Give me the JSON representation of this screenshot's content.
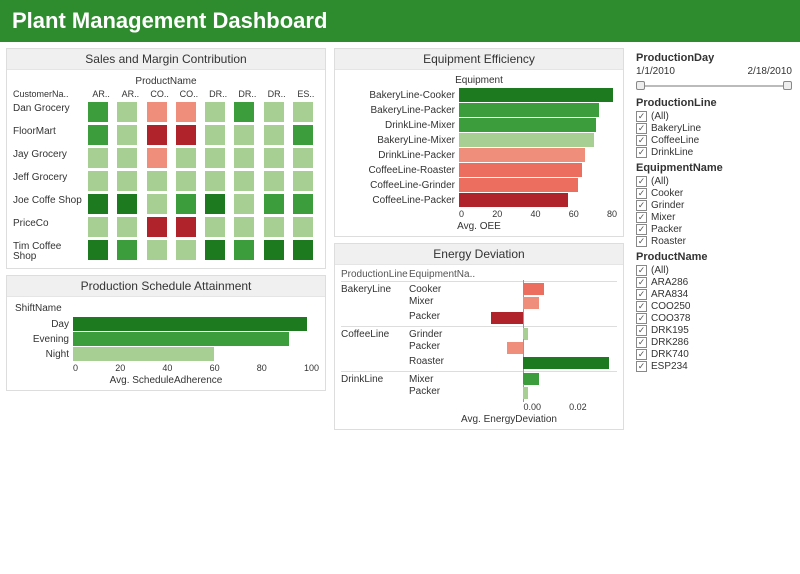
{
  "header": {
    "title": "Plant Management Dashboard"
  },
  "colors": {
    "darkGreen": "#1e7a1e",
    "green": "#3b9d3b",
    "lightGreen": "#a7cf94",
    "salmon": "#ef8f7b",
    "red": "#b0232a",
    "coral": "#ec6e5e",
    "grid": "#e0e0e0"
  },
  "heatmap": {
    "title": "Sales and Margin Contribution",
    "subheader": "ProductName",
    "rowheader": "CustomerNa..",
    "cols": [
      "AR..",
      "AR..",
      "CO..",
      "CO..",
      "DR..",
      "DR..",
      "DR..",
      "ES.."
    ],
    "rows": [
      {
        "label": "Dan Grocery",
        "cells": [
          "green",
          "lightGreen",
          "salmon",
          "salmon",
          "lightGreen",
          "green",
          "lightGreen",
          "lightGreen"
        ]
      },
      {
        "label": "FloorMart",
        "cells": [
          "green",
          "lightGreen",
          "red",
          "red",
          "lightGreen",
          "lightGreen",
          "lightGreen",
          "green"
        ]
      },
      {
        "label": "Jay Grocery",
        "cells": [
          "lightGreen",
          "lightGreen",
          "salmon",
          "lightGreen",
          "lightGreen",
          "lightGreen",
          "lightGreen",
          "lightGreen"
        ]
      },
      {
        "label": "Jeff Grocery",
        "cells": [
          "lightGreen",
          "lightGreen",
          "lightGreen",
          "lightGreen",
          "lightGreen",
          "lightGreen",
          "lightGreen",
          "lightGreen"
        ]
      },
      {
        "label": "Joe Coffe Shop",
        "cells": [
          "darkGreen",
          "darkGreen",
          "lightGreen",
          "green",
          "darkGreen",
          "lightGreen",
          "green",
          "green"
        ]
      },
      {
        "label": "PriceCo",
        "cells": [
          "lightGreen",
          "lightGreen",
          "red",
          "red",
          "lightGreen",
          "lightGreen",
          "lightGreen",
          "lightGreen"
        ]
      },
      {
        "label": "Tim Coffee Shop",
        "cells": [
          "darkGreen",
          "green",
          "lightGreen",
          "lightGreen",
          "darkGreen",
          "green",
          "darkGreen",
          "darkGreen"
        ]
      }
    ]
  },
  "equipment": {
    "title": "Equipment Efficiency",
    "subheader": "Equipment",
    "axisLabel": "Avg. OEE",
    "max": 90,
    "ticks": [
      "0",
      "20",
      "40",
      "60",
      "80"
    ],
    "bars": [
      {
        "label": "BakeryLine-Cooker",
        "value": 88,
        "color": "darkGreen"
      },
      {
        "label": "BakeryLine-Packer",
        "value": 80,
        "color": "green"
      },
      {
        "label": "DrinkLine-Mixer",
        "value": 78,
        "color": "green"
      },
      {
        "label": "BakeryLine-Mixer",
        "value": 77,
        "color": "lightGreen"
      },
      {
        "label": "DrinkLine-Packer",
        "value": 72,
        "color": "salmon"
      },
      {
        "label": "CoffeeLine-Roaster",
        "value": 70,
        "color": "coral"
      },
      {
        "label": "CoffeeLine-Grinder",
        "value": 68,
        "color": "coral"
      },
      {
        "label": "CoffeeLine-Packer",
        "value": 62,
        "color": "red"
      }
    ]
  },
  "schedule": {
    "title": "Production Schedule Attainment",
    "rowheader": "ShiftName",
    "axisLabel": "Avg. ScheduleAdherence",
    "max": 105,
    "ticks": [
      "0",
      "20",
      "40",
      "60",
      "80",
      "100"
    ],
    "bars": [
      {
        "label": "Day",
        "value": 100,
        "color": "darkGreen"
      },
      {
        "label": "Evening",
        "value": 92,
        "color": "green"
      },
      {
        "label": "Night",
        "value": 60,
        "color": "lightGreen"
      }
    ]
  },
  "energy": {
    "title": "Energy Deviation",
    "colA": "ProductionLine",
    "colB": "EquipmentNa..",
    "axisLabel": "Avg. EnergyDeviation",
    "min": -0.02,
    "max": 0.035,
    "ticks": [
      "0.00",
      "0.02"
    ],
    "groups": [
      {
        "line": "BakeryLine",
        "items": [
          {
            "name": "Cooker",
            "value": 0.008,
            "color": "coral"
          },
          {
            "name": "Mixer",
            "value": 0.006,
            "color": "salmon"
          },
          {
            "name": "Packer",
            "value": -0.012,
            "color": "red"
          }
        ]
      },
      {
        "line": "CoffeeLine",
        "items": [
          {
            "name": "Grinder",
            "value": 0.002,
            "color": "lightGreen"
          },
          {
            "name": "Packer",
            "value": -0.006,
            "color": "salmon"
          },
          {
            "name": "Roaster",
            "value": 0.032,
            "color": "darkGreen"
          }
        ]
      },
      {
        "line": "DrinkLine",
        "items": [
          {
            "name": "Mixer",
            "value": 0.006,
            "color": "green"
          },
          {
            "name": "Packer",
            "value": 0.002,
            "color": "lightGreen"
          }
        ]
      }
    ]
  },
  "filters": {
    "productionDay": {
      "title": "ProductionDay",
      "start": "1/1/2010",
      "end": "2/18/2010"
    },
    "productionLine": {
      "title": "ProductionLine",
      "items": [
        "(All)",
        "BakeryLine",
        "CoffeeLine",
        "DrinkLine"
      ]
    },
    "equipmentName": {
      "title": "EquipmentName",
      "items": [
        "(All)",
        "Cooker",
        "Grinder",
        "Mixer",
        "Packer",
        "Roaster"
      ]
    },
    "productName": {
      "title": "ProductName",
      "items": [
        "(All)",
        "ARA286",
        "ARA834",
        "COO250",
        "COO378",
        "DRK195",
        "DRK286",
        "DRK740",
        "ESP234"
      ]
    }
  }
}
